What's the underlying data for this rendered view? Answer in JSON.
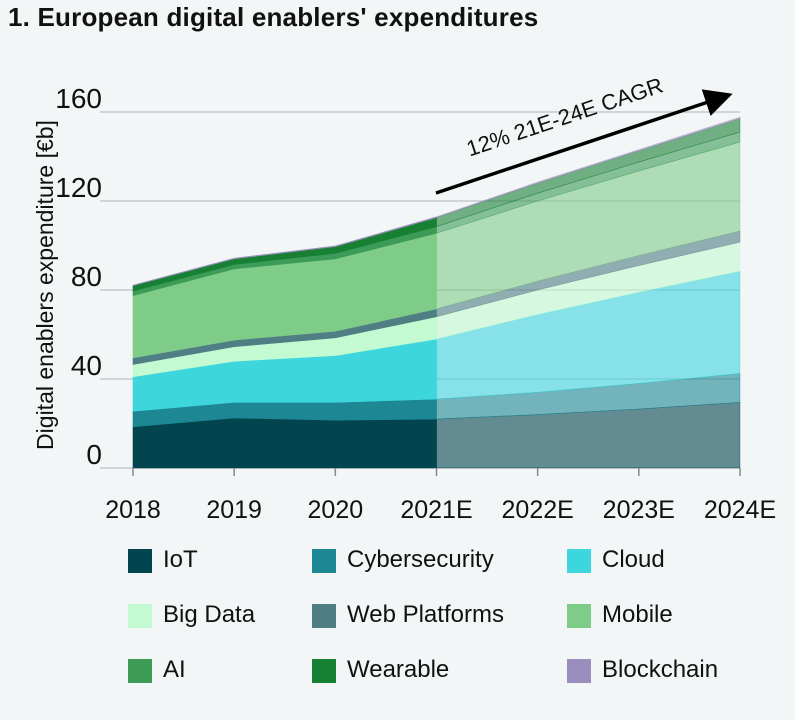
{
  "chart_data": {
    "type": "area",
    "title": "1. European digital enablers' expenditures",
    "ylabel": "Digital enablers expenditure [€b]",
    "xlabel": "",
    "categories": [
      "2018",
      "2019",
      "2020",
      "2021E",
      "2022E",
      "2023E",
      "2024E"
    ],
    "actual_count": 4,
    "ylim": [
      0,
      160
    ],
    "yticks": [
      0,
      40,
      80,
      120,
      160
    ],
    "grid": true,
    "stacked": true,
    "annotation": "12% 21E-24E CAGR",
    "legend_position": "bottom",
    "series": [
      {
        "name": "IoT",
        "color": "#02454f",
        "values": [
          18.5,
          22.5,
          21.5,
          22,
          24,
          26.5,
          29.5
        ]
      },
      {
        "name": "Cybersecurity",
        "color": "#1d8794",
        "values": [
          7,
          7,
          8,
          9,
          10,
          11.5,
          13
        ]
      },
      {
        "name": "Cloud",
        "color": "#3ed6dd",
        "values": [
          15.5,
          18.5,
          21,
          27,
          35,
          41,
          46
        ]
      },
      {
        "name": "Big Data",
        "color": "#c4fad1",
        "values": [
          5.5,
          6.5,
          8,
          10,
          11,
          12,
          13
        ]
      },
      {
        "name": "Web Platforms",
        "color": "#4f7f84",
        "values": [
          3,
          3,
          3,
          3.5,
          4,
          4.5,
          5
        ]
      },
      {
        "name": "Mobile",
        "color": "#7fcc88",
        "values": [
          28,
          32,
          32.5,
          34,
          36,
          38,
          40
        ]
      },
      {
        "name": "AI",
        "color": "#3c9b56",
        "values": [
          2,
          2,
          2.5,
          3,
          3.5,
          4,
          4.5
        ]
      },
      {
        "name": "Wearable",
        "color": "#178033",
        "values": [
          2.5,
          2.5,
          3,
          4,
          4.5,
          5,
          6
        ]
      },
      {
        "name": "Blockchain",
        "color": "#9a8fbc",
        "values": [
          0.2,
          0.3,
          0.3,
          0.4,
          0.5,
          0.6,
          0.7
        ]
      }
    ]
  }
}
